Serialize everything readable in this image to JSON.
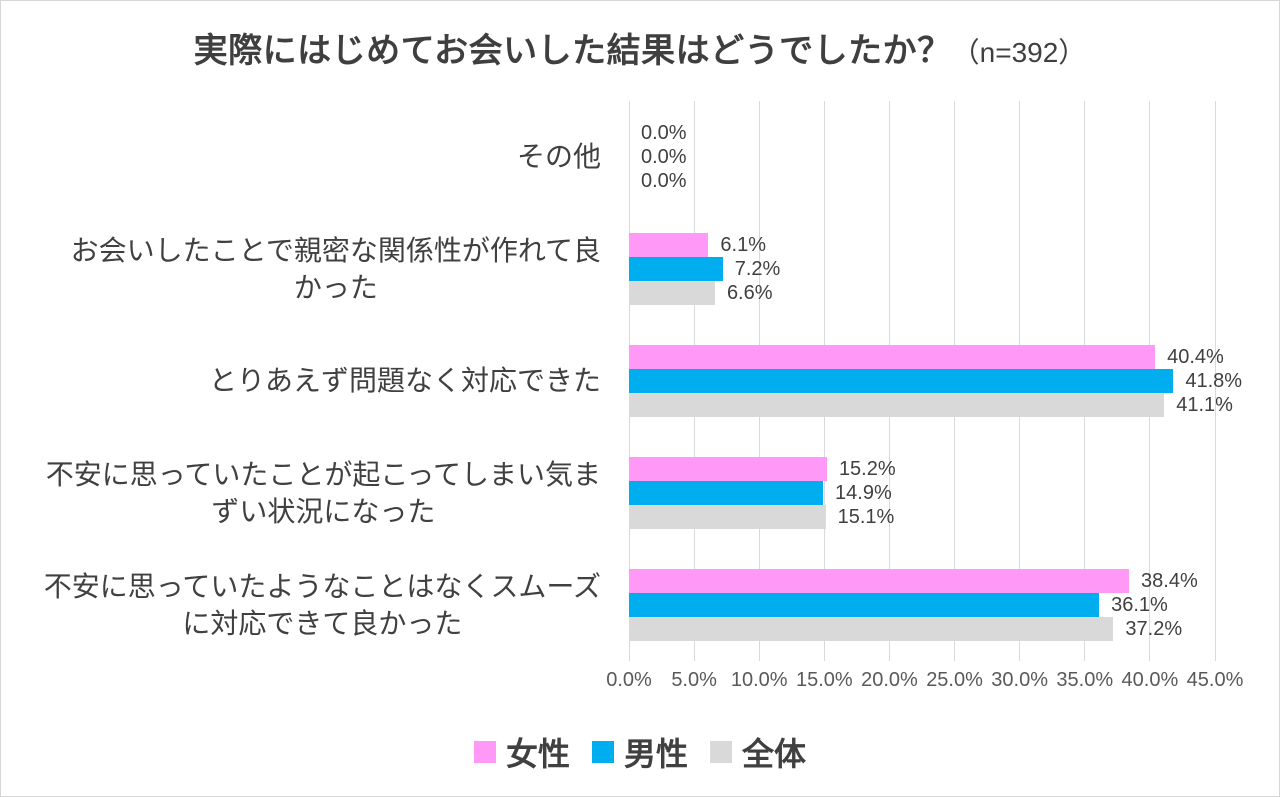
{
  "title": {
    "main": "実際にはじめてお会いした結果はどうでしたか？",
    "sample": "（n=392）"
  },
  "chart_data": {
    "type": "bar",
    "orientation": "horizontal",
    "title": "実際にはじめてお会いした結果はどうでしたか？（n=392）",
    "categories": [
      "その他",
      "お会いしたことで親密な関係性が作れて良\nかった",
      "とりあえず問題なく対応できた",
      "不安に思っていたことが起こってしまい気ま\nずい状況になった",
      "不安に思っていたようなことはなくスムーズ\nに対応できて良かった"
    ],
    "series": [
      {
        "name": "女性",
        "color": "#FF99F8",
        "values": [
          0.0,
          6.1,
          40.4,
          15.2,
          38.4
        ]
      },
      {
        "name": "男性",
        "color": "#00AEEF",
        "values": [
          0.0,
          7.2,
          41.8,
          14.9,
          36.1
        ]
      },
      {
        "name": "全体",
        "color": "#D9D9D9",
        "values": [
          0.0,
          6.6,
          41.1,
          15.1,
          37.2
        ]
      }
    ],
    "value_label_suffix": "%",
    "x_ticks": [
      "0.0%",
      "5.0%",
      "10.0%",
      "15.0%",
      "20.0%",
      "25.0%",
      "30.0%",
      "35.0%",
      "40.0%",
      "45.0%"
    ],
    "xlim": [
      0,
      45
    ],
    "grid": true,
    "gridline_color": "#d9d9d9",
    "legend_position": "bottom",
    "text_color": "#404040",
    "tick_color": "#595959"
  }
}
